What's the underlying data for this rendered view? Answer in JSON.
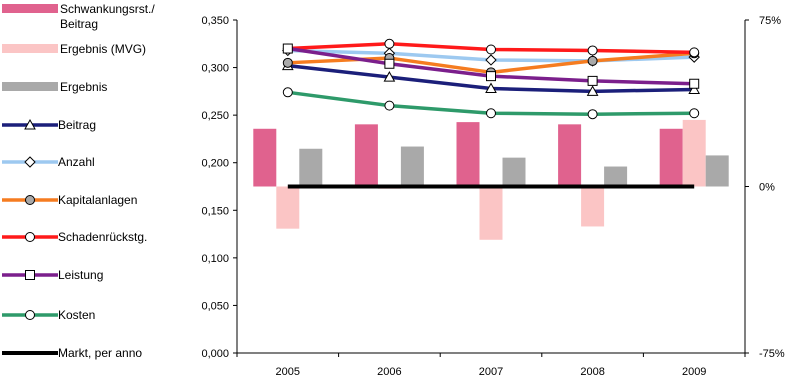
{
  "chart_data": {
    "type": "bar",
    "categories": [
      "2005",
      "2006",
      "2007",
      "2008",
      "2009"
    ],
    "ylim": [
      0,
      0.35
    ],
    "yticks": [
      "0,000",
      "0,050",
      "0,100",
      "0,150",
      "0,200",
      "0,250",
      "0,300",
      "0,350"
    ],
    "y2lim": [
      -0.75,
      0.75
    ],
    "y2ticks": [
      "-75%",
      "0%",
      "75%"
    ],
    "bar_series": [
      {
        "name": "Schwankungsrst./ Beitrag",
        "color": "#e0628e",
        "values": [
          0.26,
          0.28,
          0.29,
          0.28,
          0.26
        ]
      },
      {
        "name": "Ergebnis (MVG)",
        "color": "#fbc5c5",
        "values": [
          -0.19,
          -0.01,
          -0.24,
          -0.18,
          0.3
        ]
      },
      {
        "name": "Ergebnis",
        "color": "#a9a9a9",
        "values": [
          0.17,
          0.18,
          0.13,
          0.09,
          0.14
        ]
      }
    ],
    "line_series": [
      {
        "name": "Beitrag",
        "color": "#1b1f7a",
        "marker": "triangle",
        "values": [
          0.302,
          0.29,
          0.278,
          0.275,
          0.277
        ]
      },
      {
        "name": "Anzahl",
        "color": "#9dc9f0",
        "marker": "diamond",
        "values": [
          0.318,
          0.315,
          0.308,
          0.307,
          0.311
        ]
      },
      {
        "name": "Kapitalanlagen",
        "color": "#f57c20",
        "marker": "circle-grey",
        "values": [
          0.305,
          0.31,
          0.295,
          0.307,
          0.315
        ]
      },
      {
        "name": "Schadenrückstg.",
        "color": "#ff1a1a",
        "marker": "circle",
        "values": [
          0.32,
          0.325,
          0.319,
          0.318,
          0.316
        ]
      },
      {
        "name": "Leistung",
        "color": "#7b1f8c",
        "marker": "square",
        "values": [
          0.32,
          0.304,
          0.291,
          0.286,
          0.283
        ]
      },
      {
        "name": "Kosten",
        "color": "#2e9a6a",
        "marker": "circle",
        "values": [
          0.274,
          0.26,
          0.252,
          0.251,
          0.252
        ]
      },
      {
        "name": "Markt, per anno",
        "color": "#000000",
        "marker": "none",
        "values": [
          0.175,
          0.175,
          0.175,
          0.175,
          0.175
        ]
      }
    ]
  }
}
